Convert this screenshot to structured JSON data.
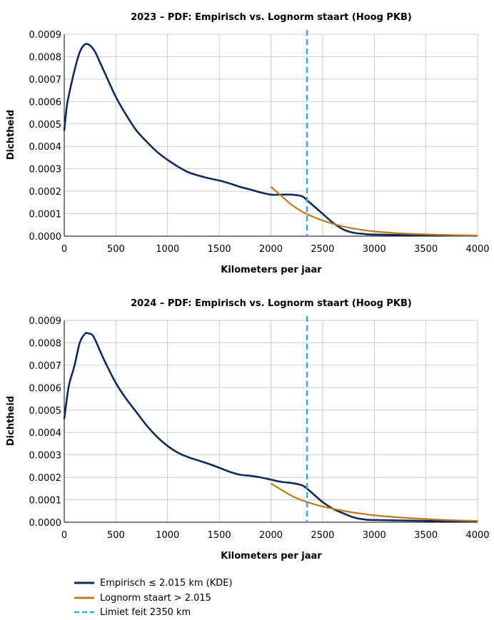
{
  "colors": {
    "empirical": "#0d2b5c",
    "lognorm": "#c07a1e",
    "limit": "#3aa9e0",
    "grid": "#cfcfcf",
    "axis": "#000000"
  },
  "legend": {
    "items": [
      {
        "label": "Empirisch ≤ 2.015 km (KDE)",
        "color": "#0d2b5c",
        "style": "solid"
      },
      {
        "label": "Lognorm staart > 2.015",
        "color": "#c07a1e",
        "style": "solid"
      },
      {
        "label": "Limiet feit 2350 km",
        "color": "#3aa9e0",
        "style": "dashed"
      }
    ]
  },
  "chart_data": [
    {
      "type": "line",
      "title": "2023 – PDF: Empirisch vs. Lognorm staart (Hoog PKB)",
      "xlabel": "Kilometers per jaar",
      "ylabel": "Dichtheid",
      "xlim": [
        0,
        4000
      ],
      "ylim": [
        0,
        0.0009
      ],
      "xticks": [
        "0",
        "500",
        "1000",
        "1500",
        "2000",
        "2500",
        "3000",
        "3500",
        "4000"
      ],
      "yticks": [
        "0.0000",
        "0.0001",
        "0.0002",
        "0.0003",
        "0.0004",
        "0.0005",
        "0.0006",
        "0.0007",
        "0.0008",
        "0.0009"
      ],
      "grid": true,
      "limit_x": 2350,
      "series": [
        {
          "key": "empirical",
          "points": [
            [
              0,
              0.00047
            ],
            [
              25,
              0.00058
            ],
            [
              50,
              0.00064
            ],
            [
              100,
              0.00074
            ],
            [
              150,
              0.00082
            ],
            [
              200,
              0.000855
            ],
            [
              250,
              0.00085
            ],
            [
              300,
              0.00082
            ],
            [
              350,
              0.00077
            ],
            [
              400,
              0.00072
            ],
            [
              500,
              0.00062
            ],
            [
              600,
              0.00054
            ],
            [
              700,
              0.00047
            ],
            [
              800,
              0.00042
            ],
            [
              900,
              0.000375
            ],
            [
              1000,
              0.00034
            ],
            [
              1100,
              0.00031
            ],
            [
              1200,
              0.000285
            ],
            [
              1300,
              0.00027
            ],
            [
              1400,
              0.000258
            ],
            [
              1500,
              0.000248
            ],
            [
              1600,
              0.000235
            ],
            [
              1700,
              0.00022
            ],
            [
              1800,
              0.000208
            ],
            [
              1900,
              0.000195
            ],
            [
              2000,
              0.000185
            ],
            [
              2100,
              0.000185
            ],
            [
              2200,
              0.000185
            ],
            [
              2300,
              0.000178
            ],
            [
              2350,
              0.00016
            ],
            [
              2400,
              0.00014
            ],
            [
              2500,
              0.0001
            ],
            [
              2600,
              6e-05
            ],
            [
              2700,
              3e-05
            ],
            [
              2800,
              1.5e-05
            ],
            [
              2900,
              1e-05
            ],
            [
              3000,
              7e-06
            ],
            [
              3500,
              4e-06
            ],
            [
              4000,
              2e-06
            ]
          ]
        },
        {
          "key": "lognorm",
          "points": [
            [
              2000,
              0.00022
            ],
            [
              2100,
              0.00018
            ],
            [
              2200,
              0.00014
            ],
            [
              2300,
              0.00011
            ],
            [
              2400,
              8.8e-05
            ],
            [
              2500,
              7e-05
            ],
            [
              2600,
              5.5e-05
            ],
            [
              2700,
              4.3e-05
            ],
            [
              2800,
              3.4e-05
            ],
            [
              2900,
              2.7e-05
            ],
            [
              3000,
              2.1e-05
            ],
            [
              3200,
              1.4e-05
            ],
            [
              3400,
              9.5e-06
            ],
            [
              3600,
              6.5e-06
            ],
            [
              3800,
              4.5e-06
            ],
            [
              4000,
              3e-06
            ]
          ]
        }
      ]
    },
    {
      "type": "line",
      "title": "2024 – PDF: Empirisch vs. Lognorm staart (Hoog PKB)",
      "xlabel": "Kilometers per jaar",
      "ylabel": "Dichtheid",
      "xlim": [
        0,
        4000
      ],
      "ylim": [
        0,
        0.0009
      ],
      "xticks": [
        "0",
        "500",
        "1000",
        "1500",
        "2000",
        "2500",
        "3000",
        "3500",
        "4000"
      ],
      "yticks": [
        "0.0000",
        "0.0001",
        "0.0002",
        "0.0003",
        "0.0004",
        "0.0005",
        "0.0006",
        "0.0007",
        "0.0008",
        "0.0009"
      ],
      "grid": true,
      "limit_x": 2350,
      "series": [
        {
          "key": "empirical",
          "points": [
            [
              0,
              0.00046
            ],
            [
              25,
              0.00055
            ],
            [
              50,
              0.00062
            ],
            [
              100,
              0.0007
            ],
            [
              150,
              0.0008
            ],
            [
              200,
              0.00084
            ],
            [
              230,
              0.000842
            ],
            [
              280,
              0.00083
            ],
            [
              350,
              0.00076
            ],
            [
              400,
              0.00071
            ],
            [
              500,
              0.00062
            ],
            [
              600,
              0.00055
            ],
            [
              700,
              0.00049
            ],
            [
              800,
              0.00043
            ],
            [
              900,
              0.00038
            ],
            [
              1000,
              0.00034
            ],
            [
              1100,
              0.00031
            ],
            [
              1200,
              0.00029
            ],
            [
              1300,
              0.000275
            ],
            [
              1400,
              0.00026
            ],
            [
              1500,
              0.000243
            ],
            [
              1600,
              0.000225
            ],
            [
              1700,
              0.000212
            ],
            [
              1800,
              0.000207
            ],
            [
              1900,
              0.0002
            ],
            [
              2000,
              0.00019
            ],
            [
              2100,
              0.00018
            ],
            [
              2200,
              0.000175
            ],
            [
              2300,
              0.000165
            ],
            [
              2350,
              0.00015
            ],
            [
              2400,
              0.00013
            ],
            [
              2500,
              9e-05
            ],
            [
              2600,
              6e-05
            ],
            [
              2700,
              4e-05
            ],
            [
              2800,
              2.2e-05
            ],
            [
              2900,
              1.3e-05
            ],
            [
              3000,
              1e-05
            ],
            [
              3500,
              6e-06
            ],
            [
              4000,
              3e-06
            ]
          ]
        },
        {
          "key": "lognorm",
          "points": [
            [
              2000,
              0.000173
            ],
            [
              2100,
              0.000145
            ],
            [
              2200,
              0.000118
            ],
            [
              2300,
              9.8e-05
            ],
            [
              2400,
              8.3e-05
            ],
            [
              2500,
              7e-05
            ],
            [
              2600,
              6e-05
            ],
            [
              2700,
              5.1e-05
            ],
            [
              2800,
              4.3e-05
            ],
            [
              2900,
              3.7e-05
            ],
            [
              3000,
              3.1e-05
            ],
            [
              3200,
              2.3e-05
            ],
            [
              3400,
              1.7e-05
            ],
            [
              3600,
              1.2e-05
            ],
            [
              3800,
              8.5e-06
            ],
            [
              4000,
              6e-06
            ]
          ]
        }
      ]
    }
  ]
}
